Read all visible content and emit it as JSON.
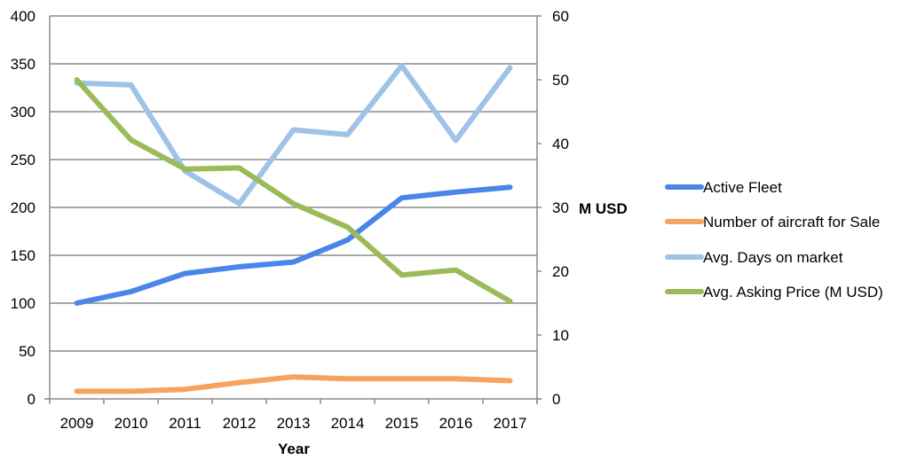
{
  "chart_data": {
    "type": "line",
    "title": "",
    "categories": [
      "2009",
      "2010",
      "2011",
      "2012",
      "2013",
      "2014",
      "2015",
      "2016",
      "2017"
    ],
    "xlabel": "Year",
    "ylabel_left": "",
    "ylabel_right": "M USD",
    "ylim_left": [
      0,
      400
    ],
    "ylim_right": [
      0,
      60
    ],
    "yticks_left": [
      0,
      50,
      100,
      150,
      200,
      250,
      300,
      350,
      400
    ],
    "yticks_right": [
      0,
      10,
      20,
      30,
      40,
      50,
      60
    ],
    "grid": true,
    "legend_position": "right",
    "series": [
      {
        "name": "Active Fleet",
        "axis": "left",
        "color": "#4a86e8",
        "values": [
          100,
          112,
          131,
          138,
          143,
          166,
          210,
          216,
          221
        ]
      },
      {
        "name": "Number of aircraft for Sale",
        "axis": "left",
        "color": "#f6a35f",
        "values": [
          8,
          8,
          10,
          17,
          23,
          21,
          21,
          21,
          19
        ]
      },
      {
        "name": "Avg. Days on market",
        "axis": "left",
        "color": "#9fc2e7",
        "values": [
          330,
          328,
          238,
          204,
          281,
          276,
          348,
          270,
          346
        ]
      },
      {
        "name": "Avg. Asking Price (M USD)",
        "axis": "right",
        "color": "#9bbb59",
        "values": [
          50,
          40.6,
          36,
          36.2,
          30.6,
          26.9,
          19.4,
          20.2,
          15.3
        ]
      }
    ]
  }
}
